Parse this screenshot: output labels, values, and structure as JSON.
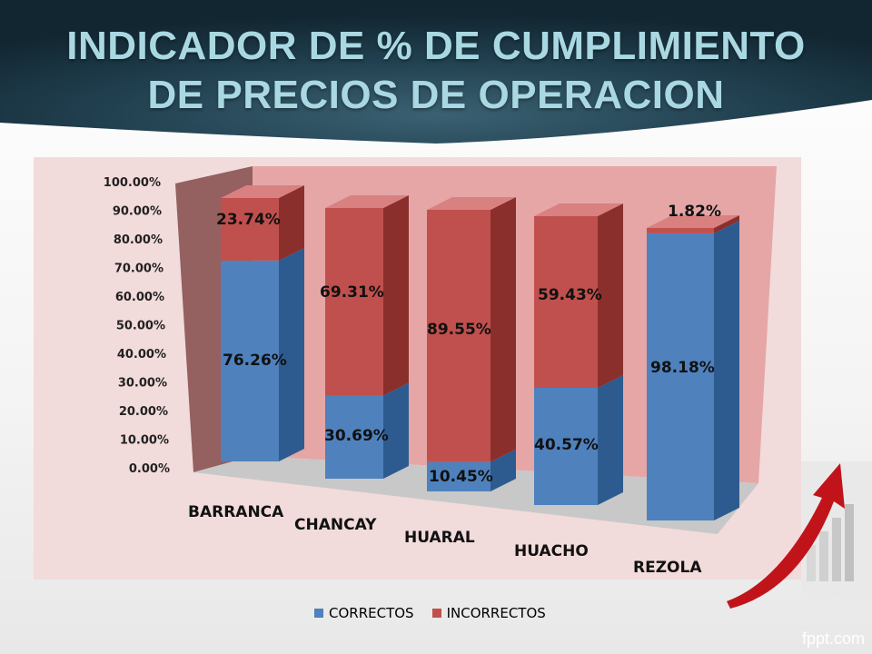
{
  "slide": {
    "title_line1": "INDICADOR DE % DE CUMPLIMIENTO",
    "title_line2": "DE PRECIOS DE OPERACION",
    "brand": "fppt.com"
  },
  "colors": {
    "correctos": "#4f81bd",
    "incorrectos": "#c0504d",
    "plot_background": "#f2dbdb",
    "header_background": "#17313f"
  },
  "chart_data": {
    "type": "bar",
    "stacked": true,
    "three_d": true,
    "categories": [
      "BARRANCA",
      "CHANCAY",
      "HUARAL",
      "HUACHO",
      "REZOLA"
    ],
    "series": [
      {
        "name": "CORRECTOS",
        "values": [
          76.26,
          30.69,
          10.45,
          40.57,
          98.18
        ],
        "labels": [
          "76.26%",
          "30.69%",
          "10.45%",
          "40.57%",
          "98.18%"
        ]
      },
      {
        "name": "INCORRECTOS",
        "values": [
          23.74,
          69.31,
          89.55,
          59.43,
          1.82
        ],
        "labels": [
          "23.74%",
          "69.31%",
          "89.55%",
          "59.43%",
          "1.82%"
        ]
      }
    ],
    "y_ticks": [
      "0.00%",
      "10.00%",
      "20.00%",
      "30.00%",
      "40.00%",
      "50.00%",
      "60.00%",
      "70.00%",
      "80.00%",
      "90.00%",
      "100.00%"
    ],
    "ylim": [
      0,
      100
    ],
    "legend_position": "bottom"
  }
}
